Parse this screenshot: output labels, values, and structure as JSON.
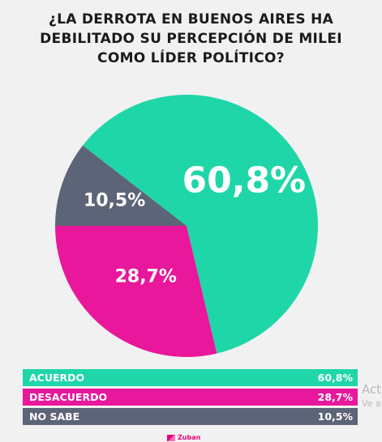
{
  "title_lines": [
    "¿LA DERROTA EN BUENOS AIRES HA",
    "DEBILITADO SU PERCEPCIÓN DE MILEI",
    "COMO LÍDER POLÍTICO?"
  ],
  "chart_data": {
    "type": "pie",
    "title": "¿LA DERROTA EN BUENOS AIRES HA DEBILITADO SU PERCEPCIÓN DE MILEI COMO LÍDER POLÍTICO?",
    "slices": [
      {
        "name": "ACUERDO",
        "value": 60.8,
        "label": "60,8%",
        "color": "#1fd6a9"
      },
      {
        "name": "DESACUERDO",
        "value": 28.7,
        "label": "28,7%",
        "color": "#e8179b"
      },
      {
        "name": "NO SABE",
        "value": 10.5,
        "label": "10,5%",
        "color": "#5c6478"
      }
    ]
  },
  "legend": [
    {
      "name": "ACUERDO",
      "value": "60,8%",
      "color": "#1fd6a9"
    },
    {
      "name": "DESACUERDO",
      "value": "28,7%",
      "color": "#e8179b"
    },
    {
      "name": "NO SABE",
      "value": "10,5%",
      "color": "#5c6478"
    }
  ],
  "watermark": {
    "line1": "Act",
    "line2": "Ve a"
  },
  "logo": {
    "text": "Zuban"
  }
}
